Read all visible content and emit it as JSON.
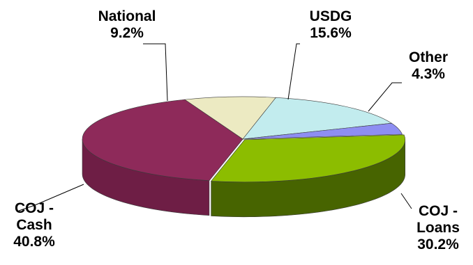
{
  "chart_data": {
    "type": "pie",
    "title": "",
    "style": "3d-exploded-depth",
    "slices": [
      {
        "label": [
          "National"
        ],
        "value": 9.2,
        "display": "9.2%",
        "color": "#ECEAC2",
        "side_color": "#B9B790"
      },
      {
        "label": [
          "USDG"
        ],
        "value": 15.6,
        "display": "15.6%",
        "color": "#C2ECEE",
        "side_color": "#8FBBBD"
      },
      {
        "label": [
          "Other"
        ],
        "value": 4.3,
        "display": "4.3%",
        "color": "#8E8EF2",
        "side_color": "#5E5EBE"
      },
      {
        "label": [
          "COJ -",
          "Loans"
        ],
        "value": 30.2,
        "display": "30.2%",
        "color": "#8CBD00",
        "side_color": "#476400"
      },
      {
        "label": [
          "COJ -",
          "Cash"
        ],
        "value": 40.8,
        "display": "40.8%",
        "color": "#8E2A5A",
        "side_color": "#6E1E45"
      }
    ]
  }
}
